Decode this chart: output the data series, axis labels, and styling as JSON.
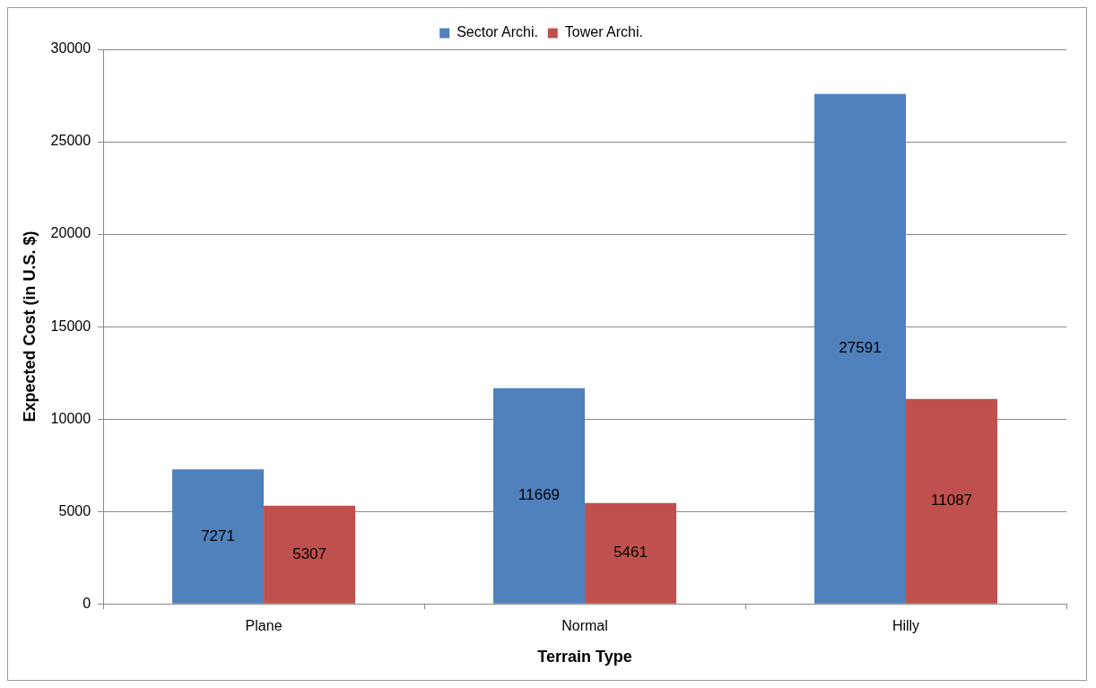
{
  "chart_data": {
    "type": "bar",
    "xlabel": "Terrain Type",
    "ylabel": "Expected Cost (in U.S. $)",
    "categories": [
      "Plane",
      "Normal",
      "Hilly"
    ],
    "series": [
      {
        "name": "Sector Archi.",
        "color": "#4f81bd",
        "values": [
          7271,
          11669,
          27591
        ]
      },
      {
        "name": "Tower Archi.",
        "color": "#c0504d",
        "values": [
          5307,
          5461,
          11087
        ]
      }
    ],
    "ylim": [
      0,
      30000
    ],
    "yticks": [
      0,
      5000,
      10000,
      15000,
      20000,
      25000,
      30000
    ],
    "grid": "y",
    "legend": "top",
    "data_labels": true
  }
}
